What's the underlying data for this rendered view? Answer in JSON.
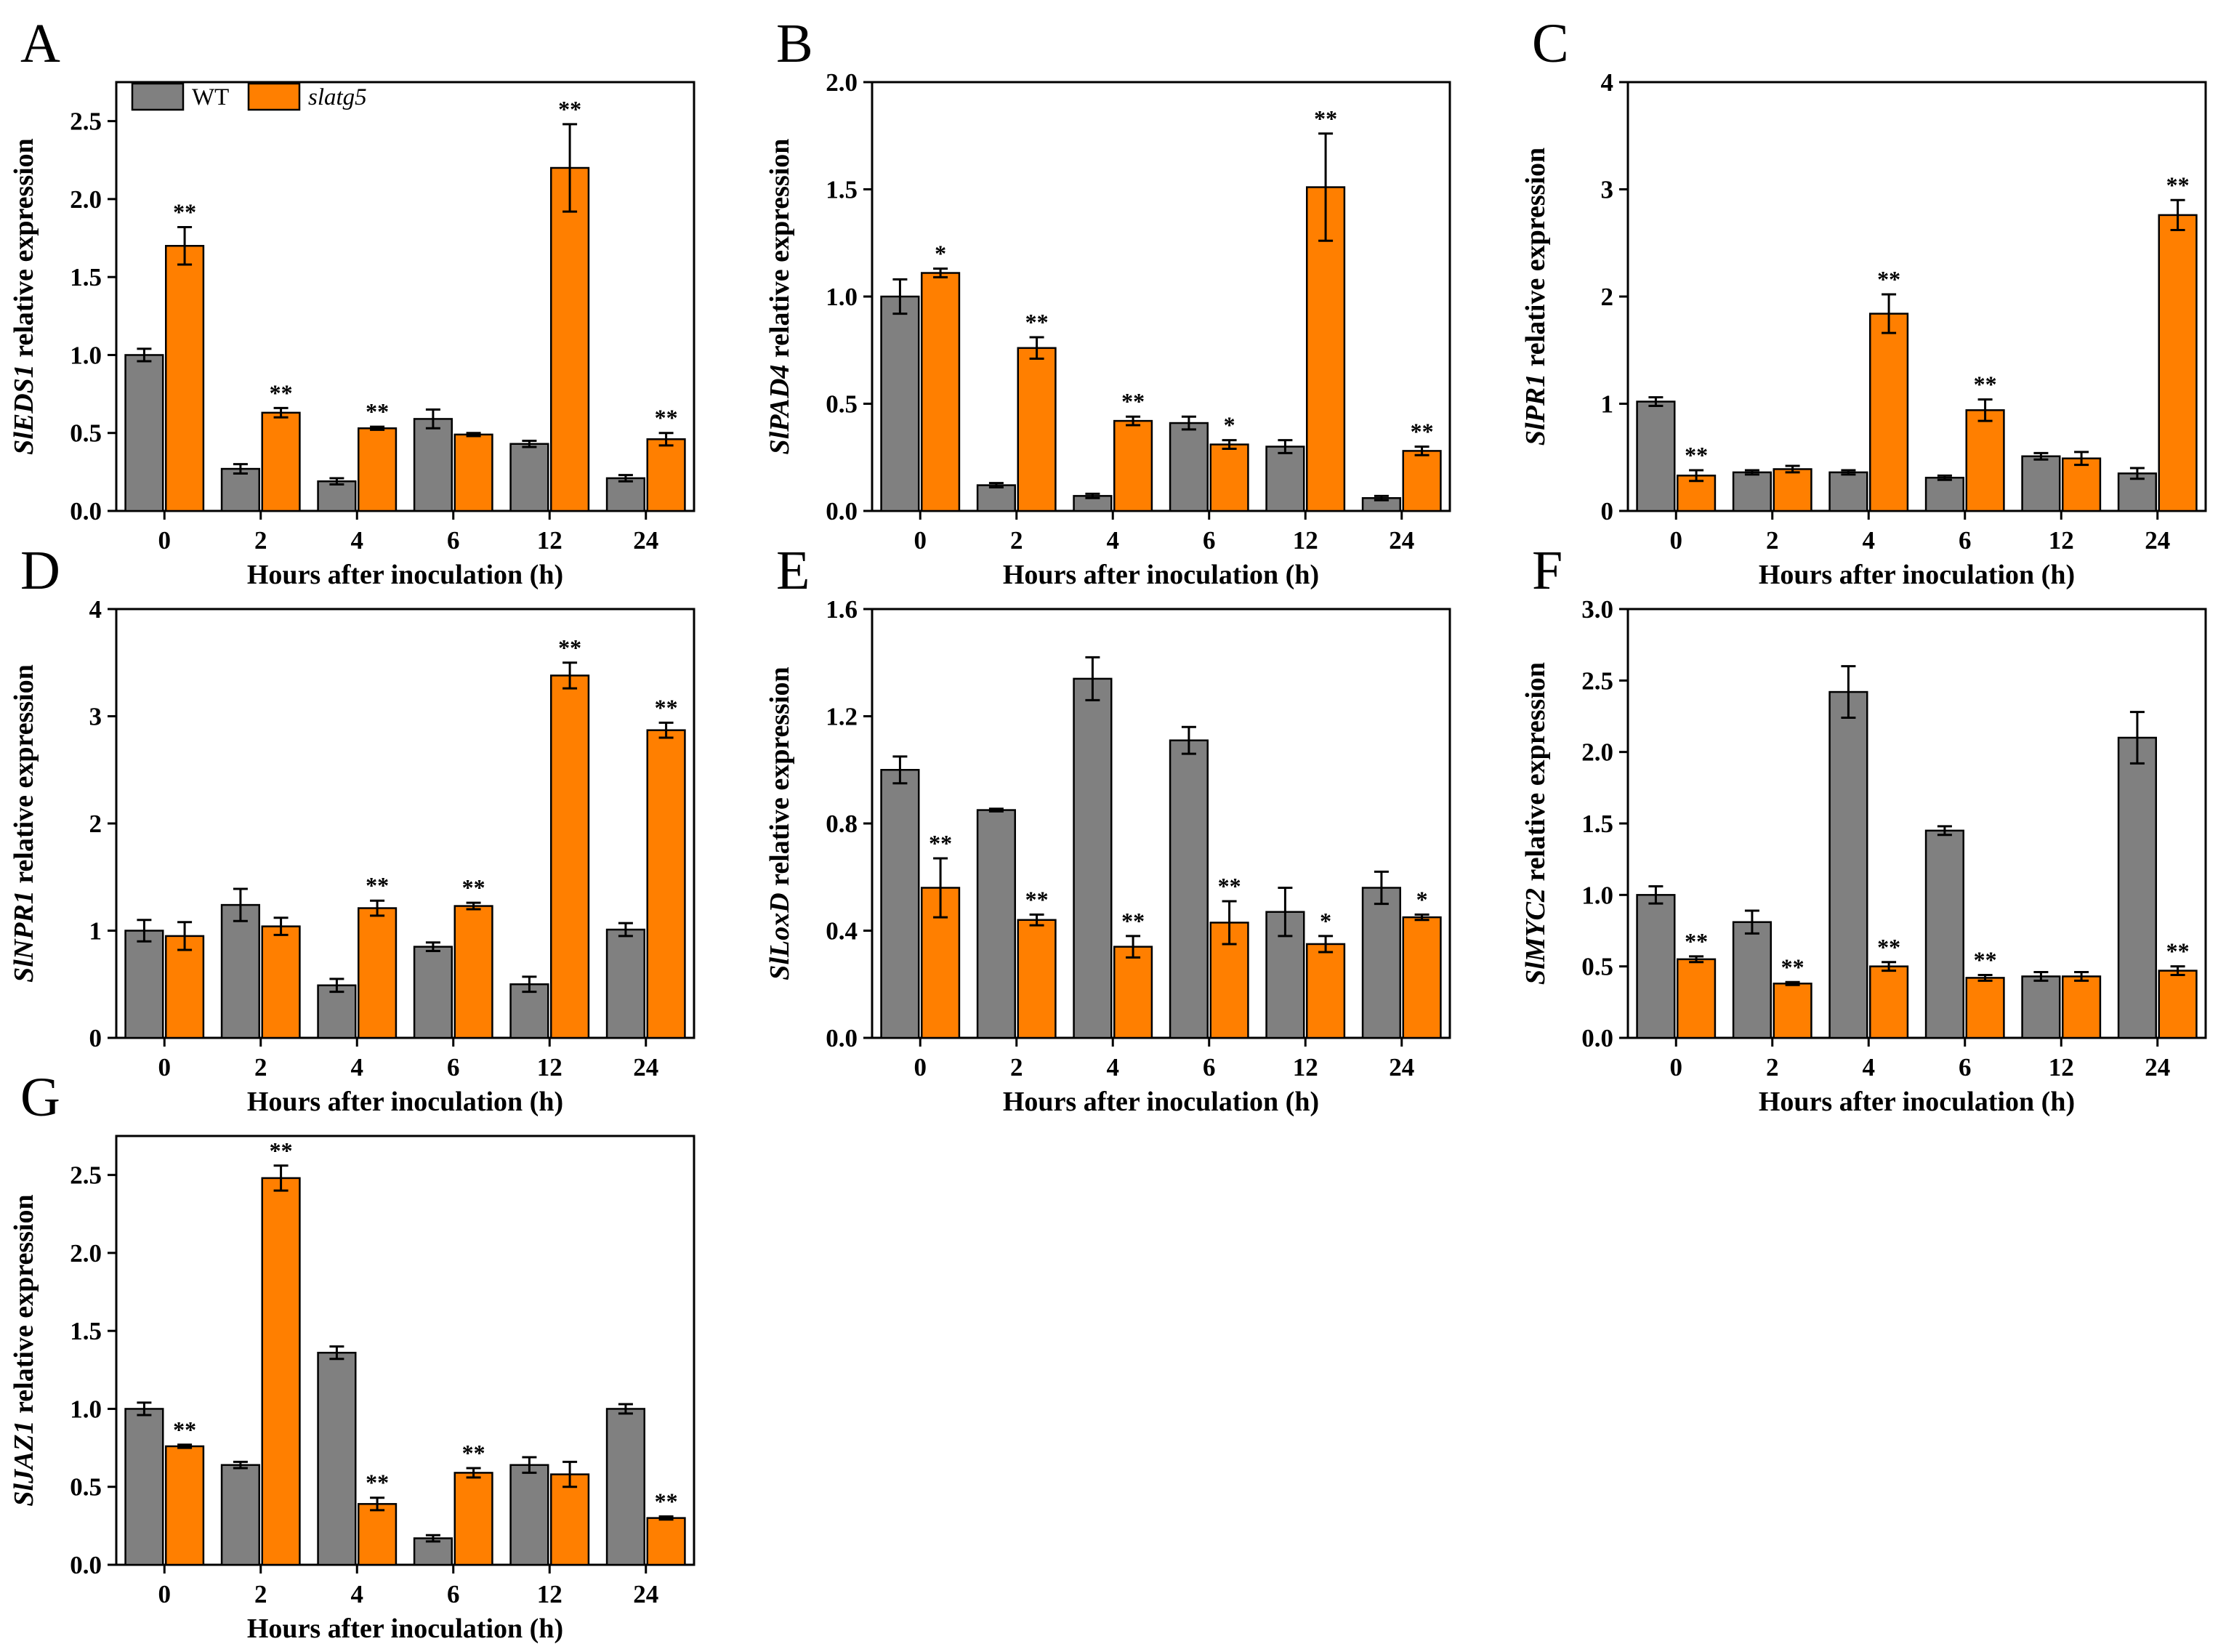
{
  "colors": {
    "wt": "#808080",
    "mutant": "#ff7f00",
    "stroke": "#000000"
  },
  "legend": {
    "wt_label": "WT",
    "mutant_label": "slatg5"
  },
  "chart_data": [
    {
      "type": "bar",
      "panel": "A",
      "gene": "SlEDS1",
      "ylabel_suffix": " relative expression",
      "xlabel": "Hours after inoculation (h)",
      "categories": [
        "0",
        "2",
        "4",
        "6",
        "12",
        "24"
      ],
      "ylim": [
        0,
        2.75
      ],
      "yticks": [
        0,
        0.5,
        1.0,
        1.5,
        2.0,
        2.5
      ],
      "ytick_labels": [
        "0.0",
        "0.5",
        "1.0",
        "1.5",
        "2.0",
        "2.5"
      ],
      "series": [
        {
          "name": "WT",
          "values": [
            1.0,
            0.27,
            0.19,
            0.59,
            0.43,
            0.21
          ],
          "errors": [
            0.04,
            0.03,
            0.02,
            0.06,
            0.02,
            0.02
          ]
        },
        {
          "name": "slatg5",
          "values": [
            1.7,
            0.63,
            0.53,
            0.49,
            2.2,
            0.46
          ],
          "errors": [
            0.12,
            0.03,
            0.01,
            0.01,
            0.28,
            0.04
          ]
        }
      ],
      "significance": [
        "**",
        "**",
        "**",
        "",
        "**",
        "**"
      ]
    },
    {
      "type": "bar",
      "panel": "B",
      "gene": "SlPAD4",
      "ylabel_suffix": " relative expression",
      "xlabel": "Hours after inoculation (h)",
      "categories": [
        "0",
        "2",
        "4",
        "6",
        "12",
        "24"
      ],
      "ylim": [
        0,
        2.0
      ],
      "yticks": [
        0,
        0.5,
        1.0,
        1.5,
        2.0
      ],
      "ytick_labels": [
        "0.0",
        "0.5",
        "1.0",
        "1.5",
        "2.0"
      ],
      "series": [
        {
          "name": "WT",
          "values": [
            1.0,
            0.12,
            0.07,
            0.41,
            0.3,
            0.06
          ],
          "errors": [
            0.08,
            0.01,
            0.01,
            0.03,
            0.03,
            0.01
          ]
        },
        {
          "name": "slatg5",
          "values": [
            1.11,
            0.76,
            0.42,
            0.31,
            1.51,
            0.28
          ],
          "errors": [
            0.02,
            0.05,
            0.02,
            0.02,
            0.25,
            0.02
          ]
        }
      ],
      "significance": [
        "*",
        "**",
        "**",
        "*",
        "**",
        "**"
      ]
    },
    {
      "type": "bar",
      "panel": "C",
      "gene": "SlPR1",
      "ylabel_suffix": " relative expression",
      "xlabel": "Hours after inoculation (h)",
      "categories": [
        "0",
        "2",
        "4",
        "6",
        "12",
        "24"
      ],
      "ylim": [
        0,
        4
      ],
      "yticks": [
        0,
        1,
        2,
        3,
        4
      ],
      "ytick_labels": [
        "0",
        "1",
        "2",
        "3",
        "4"
      ],
      "series": [
        {
          "name": "WT",
          "values": [
            1.02,
            0.36,
            0.36,
            0.31,
            0.51,
            0.35
          ],
          "errors": [
            0.04,
            0.02,
            0.02,
            0.02,
            0.03,
            0.05
          ]
        },
        {
          "name": "slatg5",
          "values": [
            0.33,
            0.39,
            1.84,
            0.94,
            0.49,
            2.76
          ],
          "errors": [
            0.05,
            0.03,
            0.18,
            0.1,
            0.06,
            0.14
          ]
        }
      ],
      "significance": [
        "**",
        "",
        "**",
        "**",
        "",
        "**"
      ]
    },
    {
      "type": "bar",
      "panel": "D",
      "gene": "SlNPR1",
      "ylabel_suffix": " relative expression",
      "xlabel": "Hours after inoculation (h)",
      "categories": [
        "0",
        "2",
        "4",
        "6",
        "12",
        "24"
      ],
      "ylim": [
        0,
        4
      ],
      "yticks": [
        0,
        1,
        2,
        3,
        4
      ],
      "ytick_labels": [
        "0",
        "1",
        "2",
        "3",
        "4"
      ],
      "series": [
        {
          "name": "WT",
          "values": [
            1.0,
            1.24,
            0.49,
            0.85,
            0.5,
            1.01
          ],
          "errors": [
            0.1,
            0.15,
            0.06,
            0.04,
            0.07,
            0.06
          ]
        },
        {
          "name": "slatg5",
          "values": [
            0.95,
            1.04,
            1.21,
            1.23,
            3.38,
            2.87
          ],
          "errors": [
            0.13,
            0.08,
            0.07,
            0.03,
            0.12,
            0.07
          ]
        }
      ],
      "significance": [
        "",
        "",
        "**",
        "**",
        "**",
        "**"
      ]
    },
    {
      "type": "bar",
      "panel": "E",
      "gene": "SlLoxD",
      "ylabel_suffix": " relative expression",
      "xlabel": "Hours after inoculation (h)",
      "categories": [
        "0",
        "2",
        "4",
        "6",
        "12",
        "24"
      ],
      "ylim": [
        0,
        1.6
      ],
      "yticks": [
        0,
        0.4,
        0.8,
        1.2,
        1.6
      ],
      "ytick_labels": [
        "0.0",
        "0.4",
        "0.8",
        "1.2",
        "1.6"
      ],
      "series": [
        {
          "name": "WT",
          "values": [
            1.0,
            0.85,
            1.34,
            1.11,
            0.47,
            0.56
          ],
          "errors": [
            0.05,
            0.005,
            0.08,
            0.05,
            0.09,
            0.06
          ]
        },
        {
          "name": "slatg5",
          "values": [
            0.56,
            0.44,
            0.34,
            0.43,
            0.35,
            0.45
          ],
          "errors": [
            0.11,
            0.02,
            0.04,
            0.08,
            0.03,
            0.01
          ]
        }
      ],
      "significance": [
        "**",
        "**",
        "**",
        "**",
        "*",
        "*"
      ]
    },
    {
      "type": "bar",
      "panel": "F",
      "gene": "SlMYC2",
      "ylabel_suffix": " relative expression",
      "xlabel": "Hours after inoculation (h)",
      "categories": [
        "0",
        "2",
        "4",
        "6",
        "12",
        "24"
      ],
      "ylim": [
        0,
        3.0
      ],
      "yticks": [
        0,
        0.5,
        1.0,
        1.5,
        2.0,
        2.5,
        3.0
      ],
      "ytick_labels": [
        "0.0",
        "0.5",
        "1.0",
        "1.5",
        "2.0",
        "2.5",
        "3.0"
      ],
      "series": [
        {
          "name": "WT",
          "values": [
            1.0,
            0.81,
            2.42,
            1.45,
            0.43,
            2.1
          ],
          "errors": [
            0.06,
            0.08,
            0.18,
            0.03,
            0.03,
            0.18
          ]
        },
        {
          "name": "slatg5",
          "values": [
            0.55,
            0.38,
            0.5,
            0.42,
            0.43,
            0.47
          ],
          "errors": [
            0.02,
            0.01,
            0.03,
            0.02,
            0.03,
            0.03
          ]
        }
      ],
      "significance": [
        "**",
        "**",
        "**",
        "**",
        "",
        "**"
      ]
    },
    {
      "type": "bar",
      "panel": "G",
      "gene": "SlJAZ1",
      "ylabel_suffix": " relative expression",
      "xlabel": "Hours after inoculation (h)",
      "categories": [
        "0",
        "2",
        "4",
        "6",
        "12",
        "24"
      ],
      "ylim": [
        0,
        2.75
      ],
      "yticks": [
        0,
        0.5,
        1.0,
        1.5,
        2.0,
        2.5
      ],
      "ytick_labels": [
        "0.0",
        "0.5",
        "1.0",
        "1.5",
        "2.0",
        "2.5"
      ],
      "series": [
        {
          "name": "WT",
          "values": [
            1.0,
            0.64,
            1.36,
            0.17,
            0.64,
            1.0
          ],
          "errors": [
            0.04,
            0.02,
            0.04,
            0.02,
            0.05,
            0.03
          ]
        },
        {
          "name": "slatg5",
          "values": [
            0.76,
            2.48,
            0.39,
            0.59,
            0.58,
            0.3
          ],
          "errors": [
            0.01,
            0.08,
            0.04,
            0.03,
            0.08,
            0.01
          ]
        }
      ],
      "significance": [
        "**",
        "**",
        "**",
        "**",
        "",
        "**"
      ]
    }
  ]
}
